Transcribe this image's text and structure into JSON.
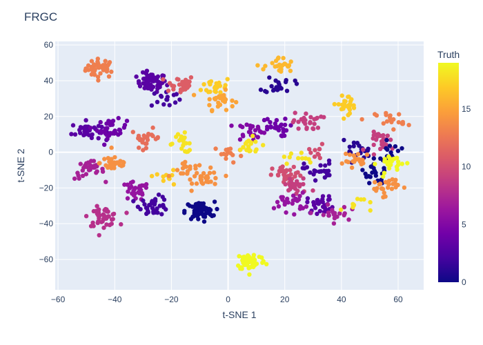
{
  "chart_data": {
    "type": "scatter",
    "title": "FRGC",
    "xlabel": "t-SNE 1",
    "ylabel": "t-SNE 2",
    "xlim": [
      -61,
      69
    ],
    "ylim": [
      -77,
      62
    ],
    "xticks": [
      -60,
      -40,
      -20,
      0,
      20,
      40,
      60
    ],
    "yticks": [
      -60,
      -40,
      -20,
      0,
      20,
      40,
      60
    ],
    "grid": true,
    "colorbar": {
      "title": "Truth",
      "range": [
        0,
        19
      ],
      "ticks": [
        0,
        5,
        10,
        15
      ],
      "colorscale": [
        "#0d0887",
        "#46039f",
        "#7201a8",
        "#9c179e",
        "#bd3786",
        "#d8576b",
        "#ed7953",
        "#fb9f3a",
        "#fdca26",
        "#f0f921"
      ]
    },
    "clusters": [
      {
        "x": -45,
        "y": 47,
        "label": 13,
        "n": 40
      },
      {
        "x": -27,
        "y": 39,
        "label": 3,
        "n": 60
      },
      {
        "x": -22,
        "y": 30,
        "label": 2,
        "n": 15
      },
      {
        "x": -17,
        "y": 38,
        "label": 11,
        "n": 30
      },
      {
        "x": -4,
        "y": 37,
        "label": 17,
        "n": 25
      },
      {
        "x": -3,
        "y": 29,
        "label": 15,
        "n": 25
      },
      {
        "x": -50,
        "y": 12,
        "label": 3,
        "n": 35
      },
      {
        "x": -41,
        "y": 13,
        "label": 4,
        "n": 35
      },
      {
        "x": -29,
        "y": 8,
        "label": 12,
        "n": 25
      },
      {
        "x": -16,
        "y": 5,
        "label": 18,
        "n": 20
      },
      {
        "x": -49,
        "y": -10,
        "label": 7,
        "n": 30
      },
      {
        "x": -40,
        "y": -6,
        "label": 14,
        "n": 35
      },
      {
        "x": -33,
        "y": -22,
        "label": 6,
        "n": 30
      },
      {
        "x": -23,
        "y": -14,
        "label": 17,
        "n": 10
      },
      {
        "x": -14,
        "y": -11,
        "label": 14,
        "n": 20
      },
      {
        "x": -7,
        "y": -15,
        "label": 14,
        "n": 25
      },
      {
        "x": -26,
        "y": -30,
        "label": 2,
        "n": 35
      },
      {
        "x": -44,
        "y": -36,
        "label": 8,
        "n": 45
      },
      {
        "x": -10,
        "y": -33,
        "label": 0,
        "n": 60
      },
      {
        "x": 0,
        "y": -1,
        "label": 13,
        "n": 15
      },
      {
        "x": 8,
        "y": -61,
        "label": 19,
        "n": 55
      },
      {
        "x": 18,
        "y": 48,
        "label": 16,
        "n": 25
      },
      {
        "x": 18,
        "y": 38,
        "label": 1,
        "n": 20
      },
      {
        "x": 8,
        "y": 12,
        "label": 5,
        "n": 25
      },
      {
        "x": 7,
        "y": 3,
        "label": 18,
        "n": 20
      },
      {
        "x": 16,
        "y": 14,
        "label": 4,
        "n": 25
      },
      {
        "x": 28,
        "y": 17,
        "label": 9,
        "n": 25
      },
      {
        "x": 24,
        "y": -4,
        "label": 18,
        "n": 10
      },
      {
        "x": 32,
        "y": -10,
        "label": 2,
        "n": 25
      },
      {
        "x": 31,
        "y": -1,
        "label": 10,
        "n": 10
      },
      {
        "x": 21,
        "y": -13,
        "label": 10,
        "n": 30
      },
      {
        "x": 24,
        "y": -19,
        "label": 9,
        "n": 25
      },
      {
        "x": 22,
        "y": -28,
        "label": 6,
        "n": 25
      },
      {
        "x": 33,
        "y": -29,
        "label": 3,
        "n": 30
      },
      {
        "x": 37,
        "y": -35,
        "label": 7,
        "n": 20
      },
      {
        "x": 42,
        "y": 27,
        "label": 17,
        "n": 25
      },
      {
        "x": 45,
        "y": 1,
        "label": 1,
        "n": 20
      },
      {
        "x": 46,
        "y": -5,
        "label": 14,
        "n": 20
      },
      {
        "x": 55,
        "y": 6,
        "label": 9,
        "n": 25
      },
      {
        "x": 57,
        "y": 18,
        "label": 13,
        "n": 20
      },
      {
        "x": 57,
        "y": 1,
        "label": 0,
        "n": 15
      },
      {
        "x": 52,
        "y": -13,
        "label": 0,
        "n": 20
      },
      {
        "x": 58,
        "y": -6,
        "label": 19,
        "n": 25
      },
      {
        "x": 55,
        "y": -19,
        "label": 14,
        "n": 25
      },
      {
        "x": 45,
        "y": -29,
        "label": 18,
        "n": 10
      }
    ]
  }
}
